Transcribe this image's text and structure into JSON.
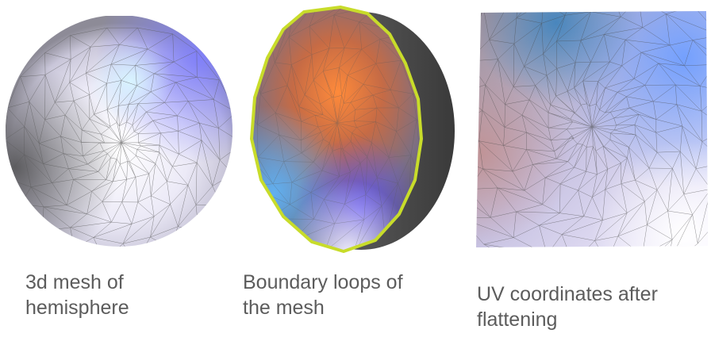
{
  "panels": [
    {
      "caption": " 3d mesh of\nhemisphere"
    },
    {
      "caption": " Boundary loops of\nthe mesh"
    },
    {
      "caption": " UV coordinates after\nflattening"
    }
  ],
  "colors": {
    "boundary_loop": "#c8dc2a",
    "mesh_lines": "#5a5a5a",
    "caption_text": "#5c5c5c"
  }
}
